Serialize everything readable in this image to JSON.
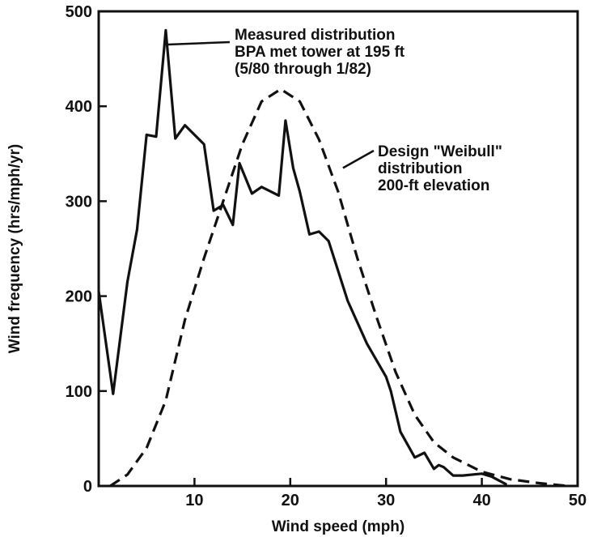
{
  "chart_data": {
    "type": "line",
    "xlabel": "Wind speed (mph)",
    "ylabel": "Wind frequency (hrs/mph/yr)",
    "xlim": [
      0,
      50
    ],
    "ylim": [
      0,
      500
    ],
    "x_ticks": [
      10,
      20,
      30,
      40,
      50
    ],
    "y_ticks": [
      0,
      100,
      200,
      300,
      400,
      500
    ],
    "grid": false,
    "series": [
      {
        "style": "solid",
        "x": [
          0,
          1.5,
          3,
          4,
          5,
          6,
          7,
          8,
          9,
          11,
          12,
          13,
          14,
          14.7,
          16,
          17,
          18,
          18.8,
          19.5,
          20.3,
          21,
          22,
          23,
          24,
          26,
          28,
          30,
          30.5,
          31.5,
          33,
          34,
          35,
          35.5,
          36,
          37,
          38,
          40,
          41,
          42.5
        ],
        "y": [
          205,
          97,
          215,
          270,
          370,
          368,
          480,
          366,
          380,
          360,
          290,
          296,
          275,
          340,
          308,
          315,
          310,
          306,
          385,
          335,
          310,
          265,
          268,
          258,
          195,
          150,
          115,
          100,
          57,
          30,
          35,
          18,
          22,
          20,
          11,
          11,
          13,
          10,
          2
        ]
      },
      {
        "style": "dashed",
        "x": [
          1.2,
          3,
          5,
          7,
          9,
          11,
          13,
          15,
          17,
          19,
          21,
          23,
          25,
          27,
          29,
          31,
          33,
          35,
          37,
          40,
          43,
          46,
          49
        ],
        "y": [
          0,
          12,
          40,
          90,
          175,
          240,
          300,
          360,
          405,
          418,
          405,
          365,
          310,
          240,
          178,
          120,
          75,
          46,
          30,
          15,
          7,
          3,
          0
        ]
      }
    ],
    "annotations": [
      {
        "lines": [
          "Measured distribution",
          "BPA met tower at 195 ft",
          "(5/80 through 1/82)"
        ],
        "points_to": [
          7.2,
          465
        ]
      },
      {
        "lines": [
          "Design \"Weibull\"",
          "distribution",
          "200-ft elevation"
        ],
        "points_to": [
          25.5,
          335
        ]
      }
    ]
  }
}
